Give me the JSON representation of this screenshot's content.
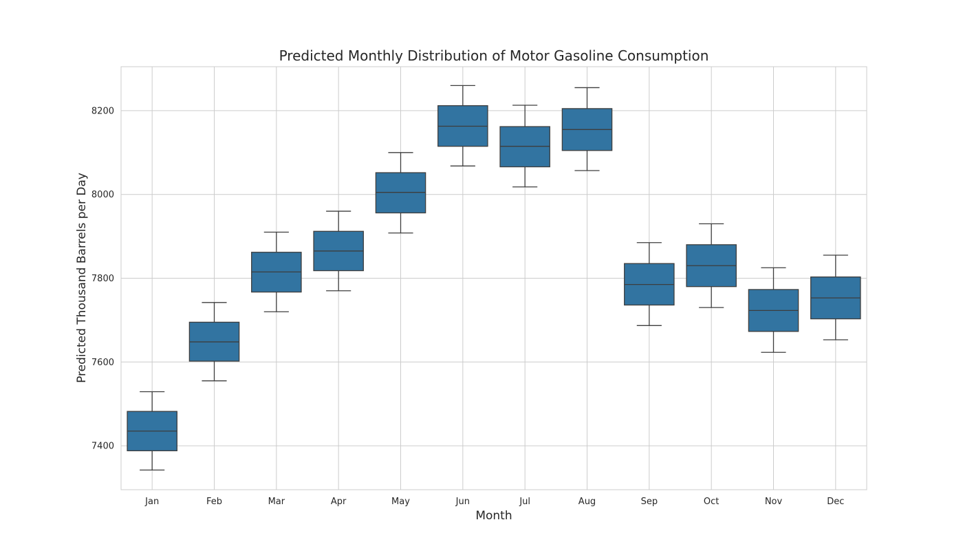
{
  "chart_data": {
    "type": "box",
    "title": "Predicted Monthly Distribution of Motor Gasoline Consumption",
    "xlabel": "Month",
    "ylabel": "Predicted Thousand Barrels per Day",
    "ylim": [
      7295,
      8305
    ],
    "yticks": [
      7400,
      7600,
      7800,
      8000,
      8200
    ],
    "grid": true,
    "categories": [
      "Jan",
      "Feb",
      "Mar",
      "Apr",
      "May",
      "Jun",
      "Jul",
      "Aug",
      "Sep",
      "Oct",
      "Nov",
      "Dec"
    ],
    "series": [
      {
        "boxes": [
          {
            "min": 7342,
            "q1": 7388,
            "median": 7435,
            "q3": 7482,
            "max": 7529
          },
          {
            "min": 7555,
            "q1": 7602,
            "median": 7648,
            "q3": 7695,
            "max": 7742
          },
          {
            "min": 7720,
            "q1": 7767,
            "median": 7815,
            "q3": 7862,
            "max": 7910
          },
          {
            "min": 7770,
            "q1": 7818,
            "median": 7865,
            "q3": 7912,
            "max": 7960
          },
          {
            "min": 7908,
            "q1": 7956,
            "median": 8005,
            "q3": 8052,
            "max": 8100
          },
          {
            "min": 8068,
            "q1": 8115,
            "median": 8163,
            "q3": 8212,
            "max": 8260
          },
          {
            "min": 8018,
            "q1": 8066,
            "median": 8115,
            "q3": 8162,
            "max": 8213
          },
          {
            "min": 8057,
            "q1": 8105,
            "median": 8155,
            "q3": 8205,
            "max": 8255
          },
          {
            "min": 7687,
            "q1": 7736,
            "median": 7785,
            "q3": 7835,
            "max": 7885
          },
          {
            "min": 7730,
            "q1": 7780,
            "median": 7830,
            "q3": 7880,
            "max": 7930
          },
          {
            "min": 7623,
            "q1": 7673,
            "median": 7723,
            "q3": 7773,
            "max": 7825
          },
          {
            "min": 7653,
            "q1": 7703,
            "median": 7753,
            "q3": 7803,
            "max": 7855
          }
        ]
      }
    ]
  },
  "colors": {
    "box_fill": "#3274a1",
    "box_edge": "#3d3d3d",
    "grid": "#cccccc",
    "text": "#262626",
    "axes_edge": "#cccccc"
  }
}
